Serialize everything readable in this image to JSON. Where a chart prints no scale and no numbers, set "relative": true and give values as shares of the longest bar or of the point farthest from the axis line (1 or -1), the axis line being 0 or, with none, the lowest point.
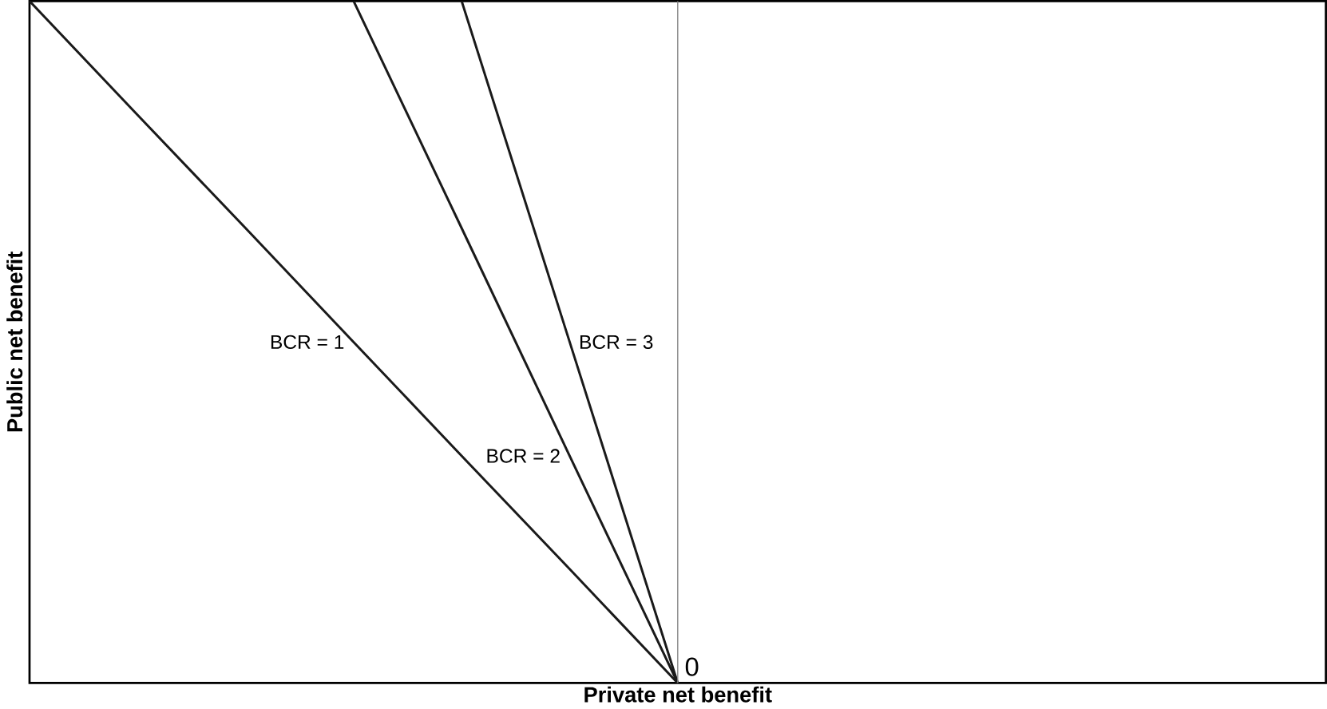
{
  "chart_data": {
    "type": "line",
    "relative": true,
    "xlabel": "Private net benefit",
    "ylabel": "Public net benefit",
    "categories": [
      null,
      null,
      null,
      null,
      null,
      null,
      null,
      null,
      null,
      null,
      null,
      null,
      null
    ],
    "series": [
      {
        "name": "BCR = 1",
        "color": "#1a1a1a",
        "values": [
          1,
          0.833,
          0.667,
          0.5,
          0.333,
          0.167,
          0,
          null,
          null,
          null,
          null,
          null,
          null
        ]
      },
      {
        "name": "BCR = 2",
        "color": "#1a1a1a",
        "values": [
          null,
          null,
          null,
          1,
          0.667,
          0.333,
          0,
          null,
          null,
          null,
          null,
          null,
          null
        ]
      },
      {
        "name": "BCR = 3",
        "color": "#1a1a1a",
        "values": [
          null,
          null,
          null,
          null,
          1,
          0.5,
          0,
          null,
          null,
          null,
          null,
          null,
          null
        ]
      }
    ],
    "annotations": [
      "0"
    ],
    "marker": "none",
    "line_style": "solid",
    "legend": false
  }
}
